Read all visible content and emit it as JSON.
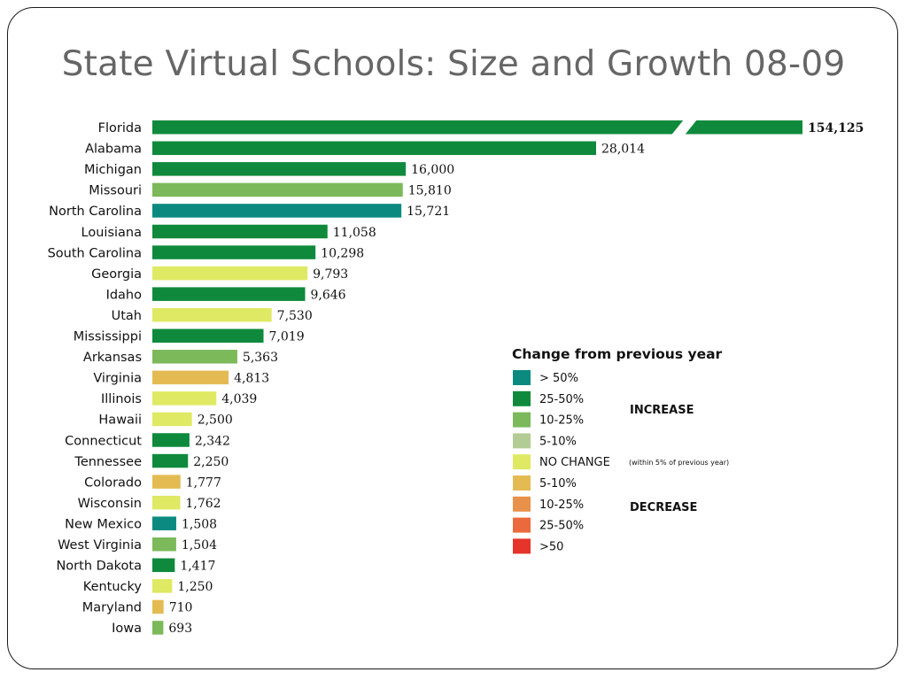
{
  "slide": {
    "title": "State Virtual Schools: Size and Growth 08-09"
  },
  "colors": {
    "gt50_increase": "#0b8a80",
    "increase_25_50": "#0f8a3c",
    "increase_10_25": "#7cb95a",
    "increase_5_10": "#b3cc95",
    "no_change": "#dfe963",
    "decrease_5_10": "#e4bb53",
    "decrease_10_25": "#e8914a",
    "decrease_25_50": "#ea6a3e",
    "decrease_gt50": "#e5342a"
  },
  "chart_data": {
    "type": "bar",
    "orientation": "horizontal",
    "title": "State Virtual Schools: Size and Growth 08-09",
    "broken_axis_category": "Florida",
    "categories": [
      "Florida",
      "Alabama",
      "Michigan",
      "Missouri",
      "North Carolina",
      "Louisiana",
      "South Carolina",
      "Georgia",
      "Idaho",
      "Utah",
      "Mississippi",
      "Arkansas",
      "Virginia",
      "Illinois",
      "Hawaii",
      "Connecticut",
      "Tennessee",
      "Colorado",
      "Wisconsin",
      "New Mexico",
      "West Virginia",
      "North Dakota",
      "Kentucky",
      "Maryland",
      "Iowa"
    ],
    "values": [
      154125,
      28014,
      16000,
      15810,
      15721,
      11058,
      10298,
      9793,
      9646,
      7530,
      7019,
      5363,
      4813,
      4039,
      2500,
      2342,
      2250,
      1777,
      1762,
      1508,
      1504,
      1417,
      1250,
      710,
      693
    ],
    "value_labels": [
      "154,125",
      "28,014",
      "16,000",
      "15,810",
      "15,721",
      "11,058",
      "10,298",
      "9,793",
      "9,646",
      "7,530",
      "7,019",
      "5,363",
      "4,813",
      "4,039",
      "2,500",
      "2,342",
      "2,250",
      "1,777",
      "1,762",
      "1,508",
      "1,504",
      "1,417",
      "1,250",
      "710",
      "693"
    ],
    "change_class": [
      "increase_25_50",
      "increase_25_50",
      "increase_25_50",
      "increase_10_25",
      "gt50_increase",
      "increase_25_50",
      "increase_25_50",
      "no_change",
      "increase_25_50",
      "no_change",
      "increase_25_50",
      "increase_10_25",
      "decrease_5_10",
      "no_change",
      "no_change",
      "increase_25_50",
      "increase_25_50",
      "decrease_5_10",
      "no_change",
      "gt50_increase",
      "increase_10_25",
      "increase_25_50",
      "no_change",
      "decrease_5_10",
      "increase_10_25"
    ],
    "legend": {
      "title": "Change from previous year",
      "items": [
        {
          "key": "gt50_increase",
          "label": "> 50%",
          "note": ""
        },
        {
          "key": "increase_25_50",
          "label": "25-50%",
          "note": ""
        },
        {
          "key": "increase_10_25",
          "label": "10-25%",
          "note": ""
        },
        {
          "key": "increase_5_10",
          "label": "5-10%",
          "note": ""
        },
        {
          "key": "no_change",
          "label": "NO CHANGE",
          "note": "(within 5% of previous year)"
        },
        {
          "key": "decrease_5_10",
          "label": "5-10%",
          "note": ""
        },
        {
          "key": "decrease_10_25",
          "label": "10-25%",
          "note": ""
        },
        {
          "key": "decrease_25_50",
          "label": "25-50%",
          "note": ""
        },
        {
          "key": "decrease_gt50",
          "label": ">50",
          "note": ""
        }
      ],
      "groups": {
        "increase": "INCREASE",
        "decrease": "DECREASE"
      }
    }
  }
}
